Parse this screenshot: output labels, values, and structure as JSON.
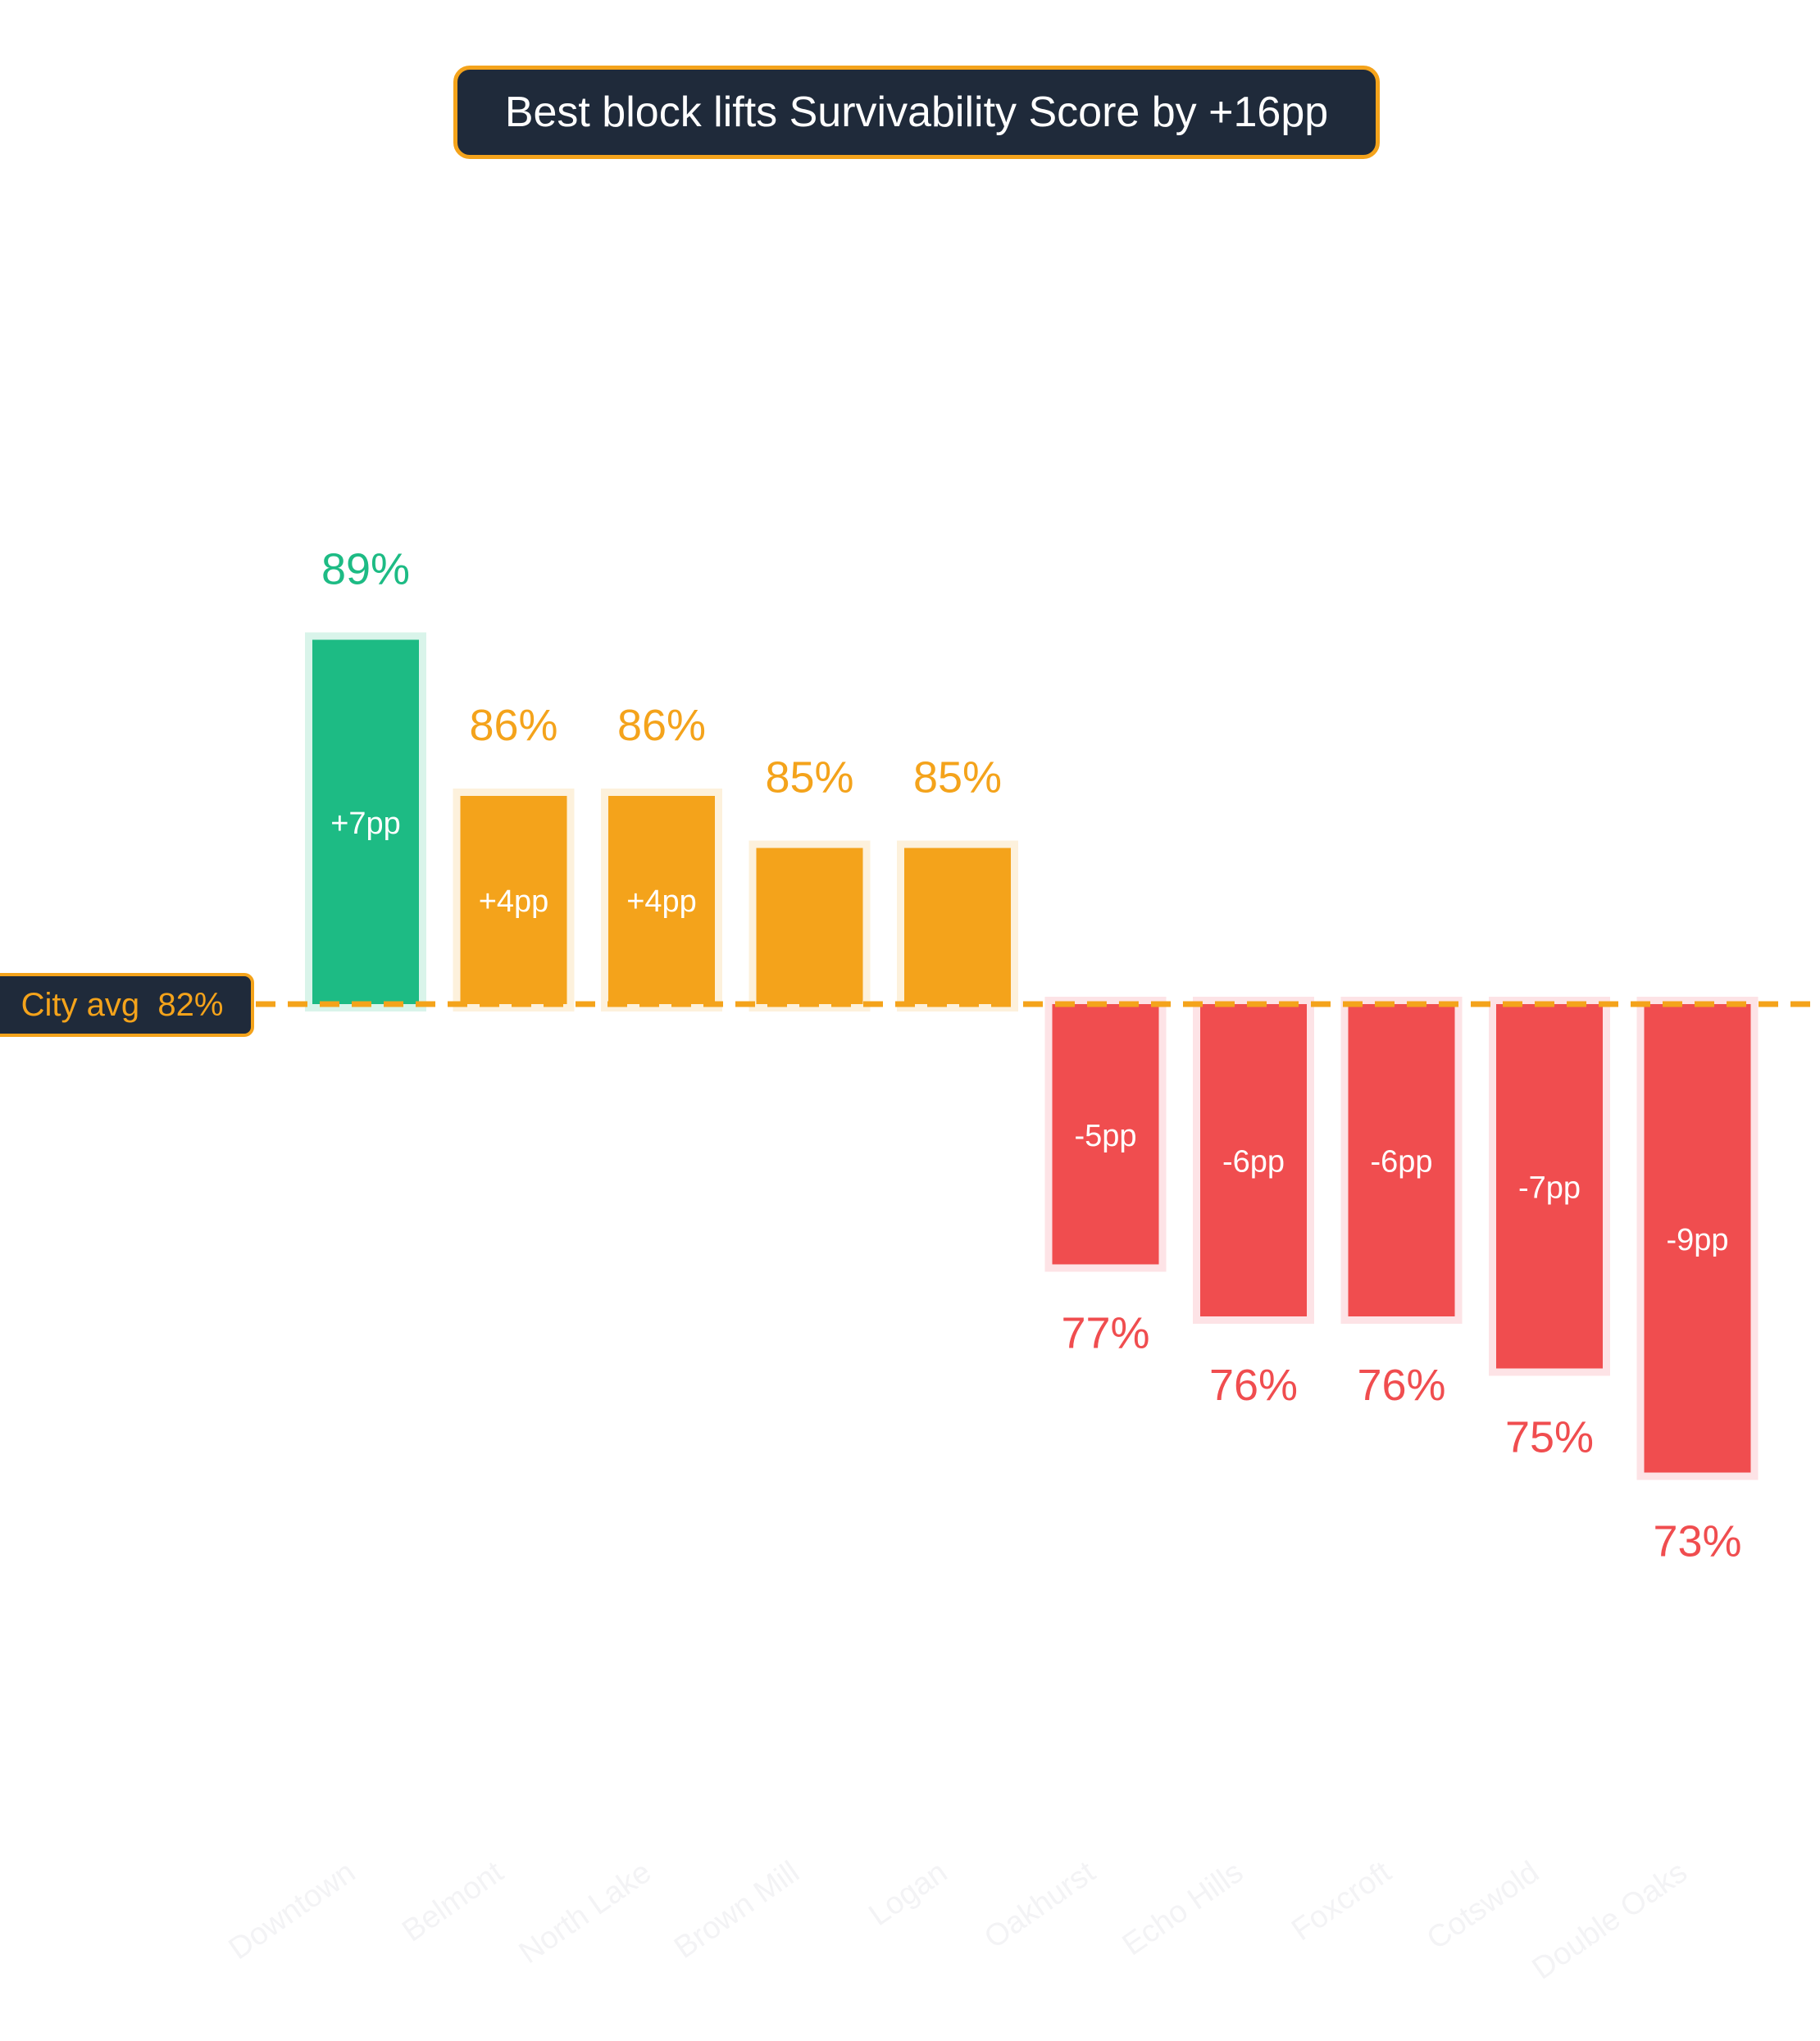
{
  "title": "Best block lifts Survivability Score by +16pp",
  "reference": {
    "label": "City avg",
    "value_label": "82%"
  },
  "colors": {
    "best": "#1dbb84",
    "above": "#f4a31b",
    "below": "#f04d4f",
    "reference_line": "#f4a31b",
    "badge_bg": "#1f2a3a",
    "axis_label": "#f3f3f5"
  },
  "chart_data": {
    "type": "bar",
    "title": "Best block lifts Survivability Score by +16pp",
    "baseline": 82,
    "baseline_label": "City avg",
    "categories": [
      "Downtown",
      "Belmont",
      "North Lake",
      "Brown Mill",
      "Logan",
      "Oakhurst",
      "Echo Hills",
      "Foxcroft",
      "Cotswold",
      "Double Oaks"
    ],
    "values": [
      89,
      86,
      86,
      85,
      85,
      77,
      76,
      76,
      75,
      73
    ],
    "value_labels": [
      "89%",
      "86%",
      "86%",
      "85%",
      "85%",
      "77%",
      "76%",
      "76%",
      "75%",
      "73%"
    ],
    "delta_labels": [
      "+7pp",
      "+4pp",
      "+4pp",
      "",
      "",
      "-5pp",
      "-6pp",
      "-6pp",
      "-7pp",
      "-9pp"
    ],
    "bar_groups": [
      "best",
      "above",
      "above",
      "above",
      "above",
      "below",
      "below",
      "below",
      "below",
      "below"
    ],
    "ylim": [
      70,
      95
    ],
    "grid": false
  }
}
